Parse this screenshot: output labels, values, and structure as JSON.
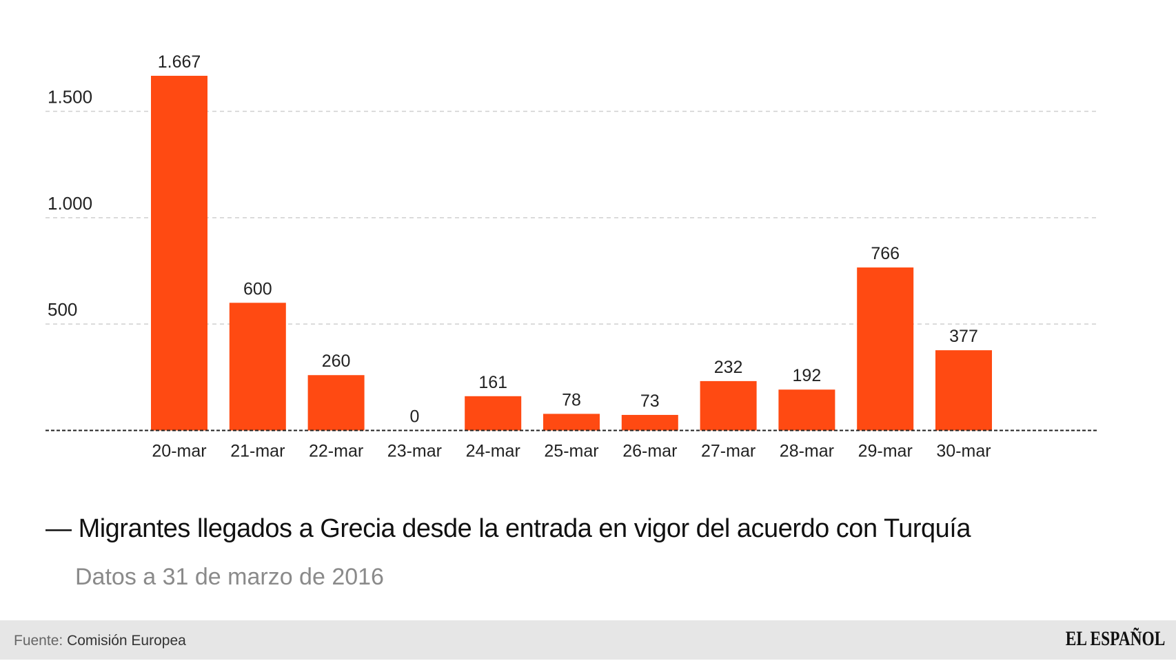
{
  "chart_data": {
    "type": "bar",
    "title": "Migrantes llegados a Grecia desde la entrada en vigor del acuerdo con Turquía",
    "subtitle": "Datos a 31 de marzo de 2016",
    "categories": [
      "20-mar",
      "21-mar",
      "22-mar",
      "23-mar",
      "24-mar",
      "25-mar",
      "26-mar",
      "27-mar",
      "28-mar",
      "29-mar",
      "30-mar"
    ],
    "values": [
      1667,
      600,
      260,
      0,
      161,
      78,
      73,
      232,
      192,
      766,
      377
    ],
    "data_labels": [
      "1.667",
      "600",
      "260",
      "0",
      "161",
      "78",
      "73",
      "232",
      "192",
      "766",
      "377"
    ],
    "yticks": [
      500,
      1000,
      1500
    ],
    "ytick_labels": [
      "500",
      "1.000",
      "1.500"
    ],
    "ylim": [
      0,
      1667
    ],
    "grid": true,
    "bar_color": "#ff4a12",
    "xlabel": "",
    "ylabel": ""
  },
  "title_dash": "—",
  "footer": {
    "source_label": "Fuente:",
    "source_value": "Comisión Europea",
    "logo": "EL ESPAÑOL",
    "background": "#e6e6e6"
  }
}
